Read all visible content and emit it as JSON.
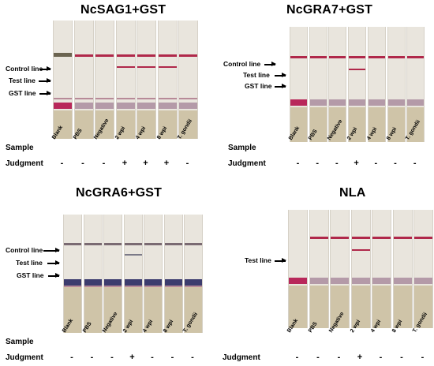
{
  "row_labels": {
    "sample": "Sample",
    "judgment": "Judgment"
  },
  "samples": [
    "Blank",
    "PBS",
    "Negative",
    "2 wpi",
    "4 wpi",
    "8 wpi",
    "T. gondii"
  ],
  "panels": [
    {
      "title": "NcSAG1+GST",
      "line_labels": [
        "Control line",
        "Test line",
        "GST line"
      ],
      "judgments": [
        "-",
        "-",
        "-",
        "+",
        "+",
        "+",
        "-"
      ]
    },
    {
      "title": "NcGRA7+GST",
      "line_labels": [
        "Control line",
        "Test line",
        "GST line"
      ],
      "judgments": [
        "-",
        "-",
        "-",
        "+",
        "-",
        "-",
        "-"
      ]
    },
    {
      "title": "NcGRA6+GST",
      "line_labels": [
        "Control line",
        "Test line",
        "GST line"
      ],
      "judgments": [
        "-",
        "-",
        "-",
        "+",
        "-",
        "-",
        "-"
      ]
    },
    {
      "title": "NLA",
      "line_labels": [
        "Test line"
      ],
      "judgments": [
        "-",
        "-",
        "-",
        "+",
        "-",
        "-",
        "-"
      ]
    }
  ],
  "colors": {
    "control_red": "#b0284a",
    "gst_blue": "#3c3c6e",
    "strip_base": "#e9e5dd",
    "pad_tan": "#cfc4a8"
  }
}
